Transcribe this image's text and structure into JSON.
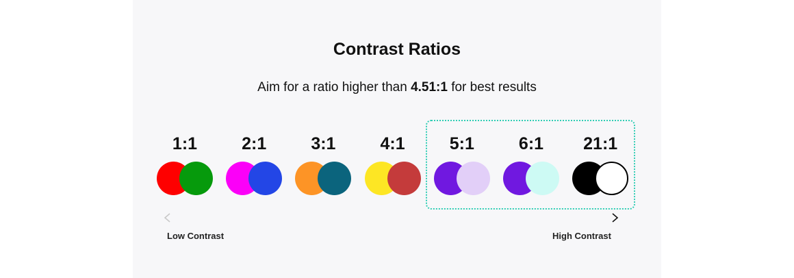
{
  "title": "Contrast Ratios",
  "subtitle": {
    "prefix": "Aim for a ratio higher than ",
    "highlight": "4.51:1",
    "suffix": " for best results"
  },
  "pairs": [
    {
      "label": "1:1",
      "back": "#fe0000",
      "front": "#069a0c"
    },
    {
      "label": "2:1",
      "back": "#fb00f8",
      "front": "#2346e6"
    },
    {
      "label": "3:1",
      "back": "#fd9426",
      "front": "#0b647d"
    },
    {
      "label": "4:1",
      "back": "#fde624",
      "front": "#c43b3b"
    },
    {
      "label": "5:1",
      "back": "#7018e0",
      "front": "#e2cff8"
    },
    {
      "label": "6:1",
      "back": "#7018e0",
      "front": "#cdfaf4"
    },
    {
      "label": "21:1",
      "back": "#000000",
      "front": "#ffffff"
    }
  ],
  "highlight_color": "#2fcdb4",
  "scale": {
    "low_label": "Low Contrast",
    "high_label": "High Contrast"
  }
}
